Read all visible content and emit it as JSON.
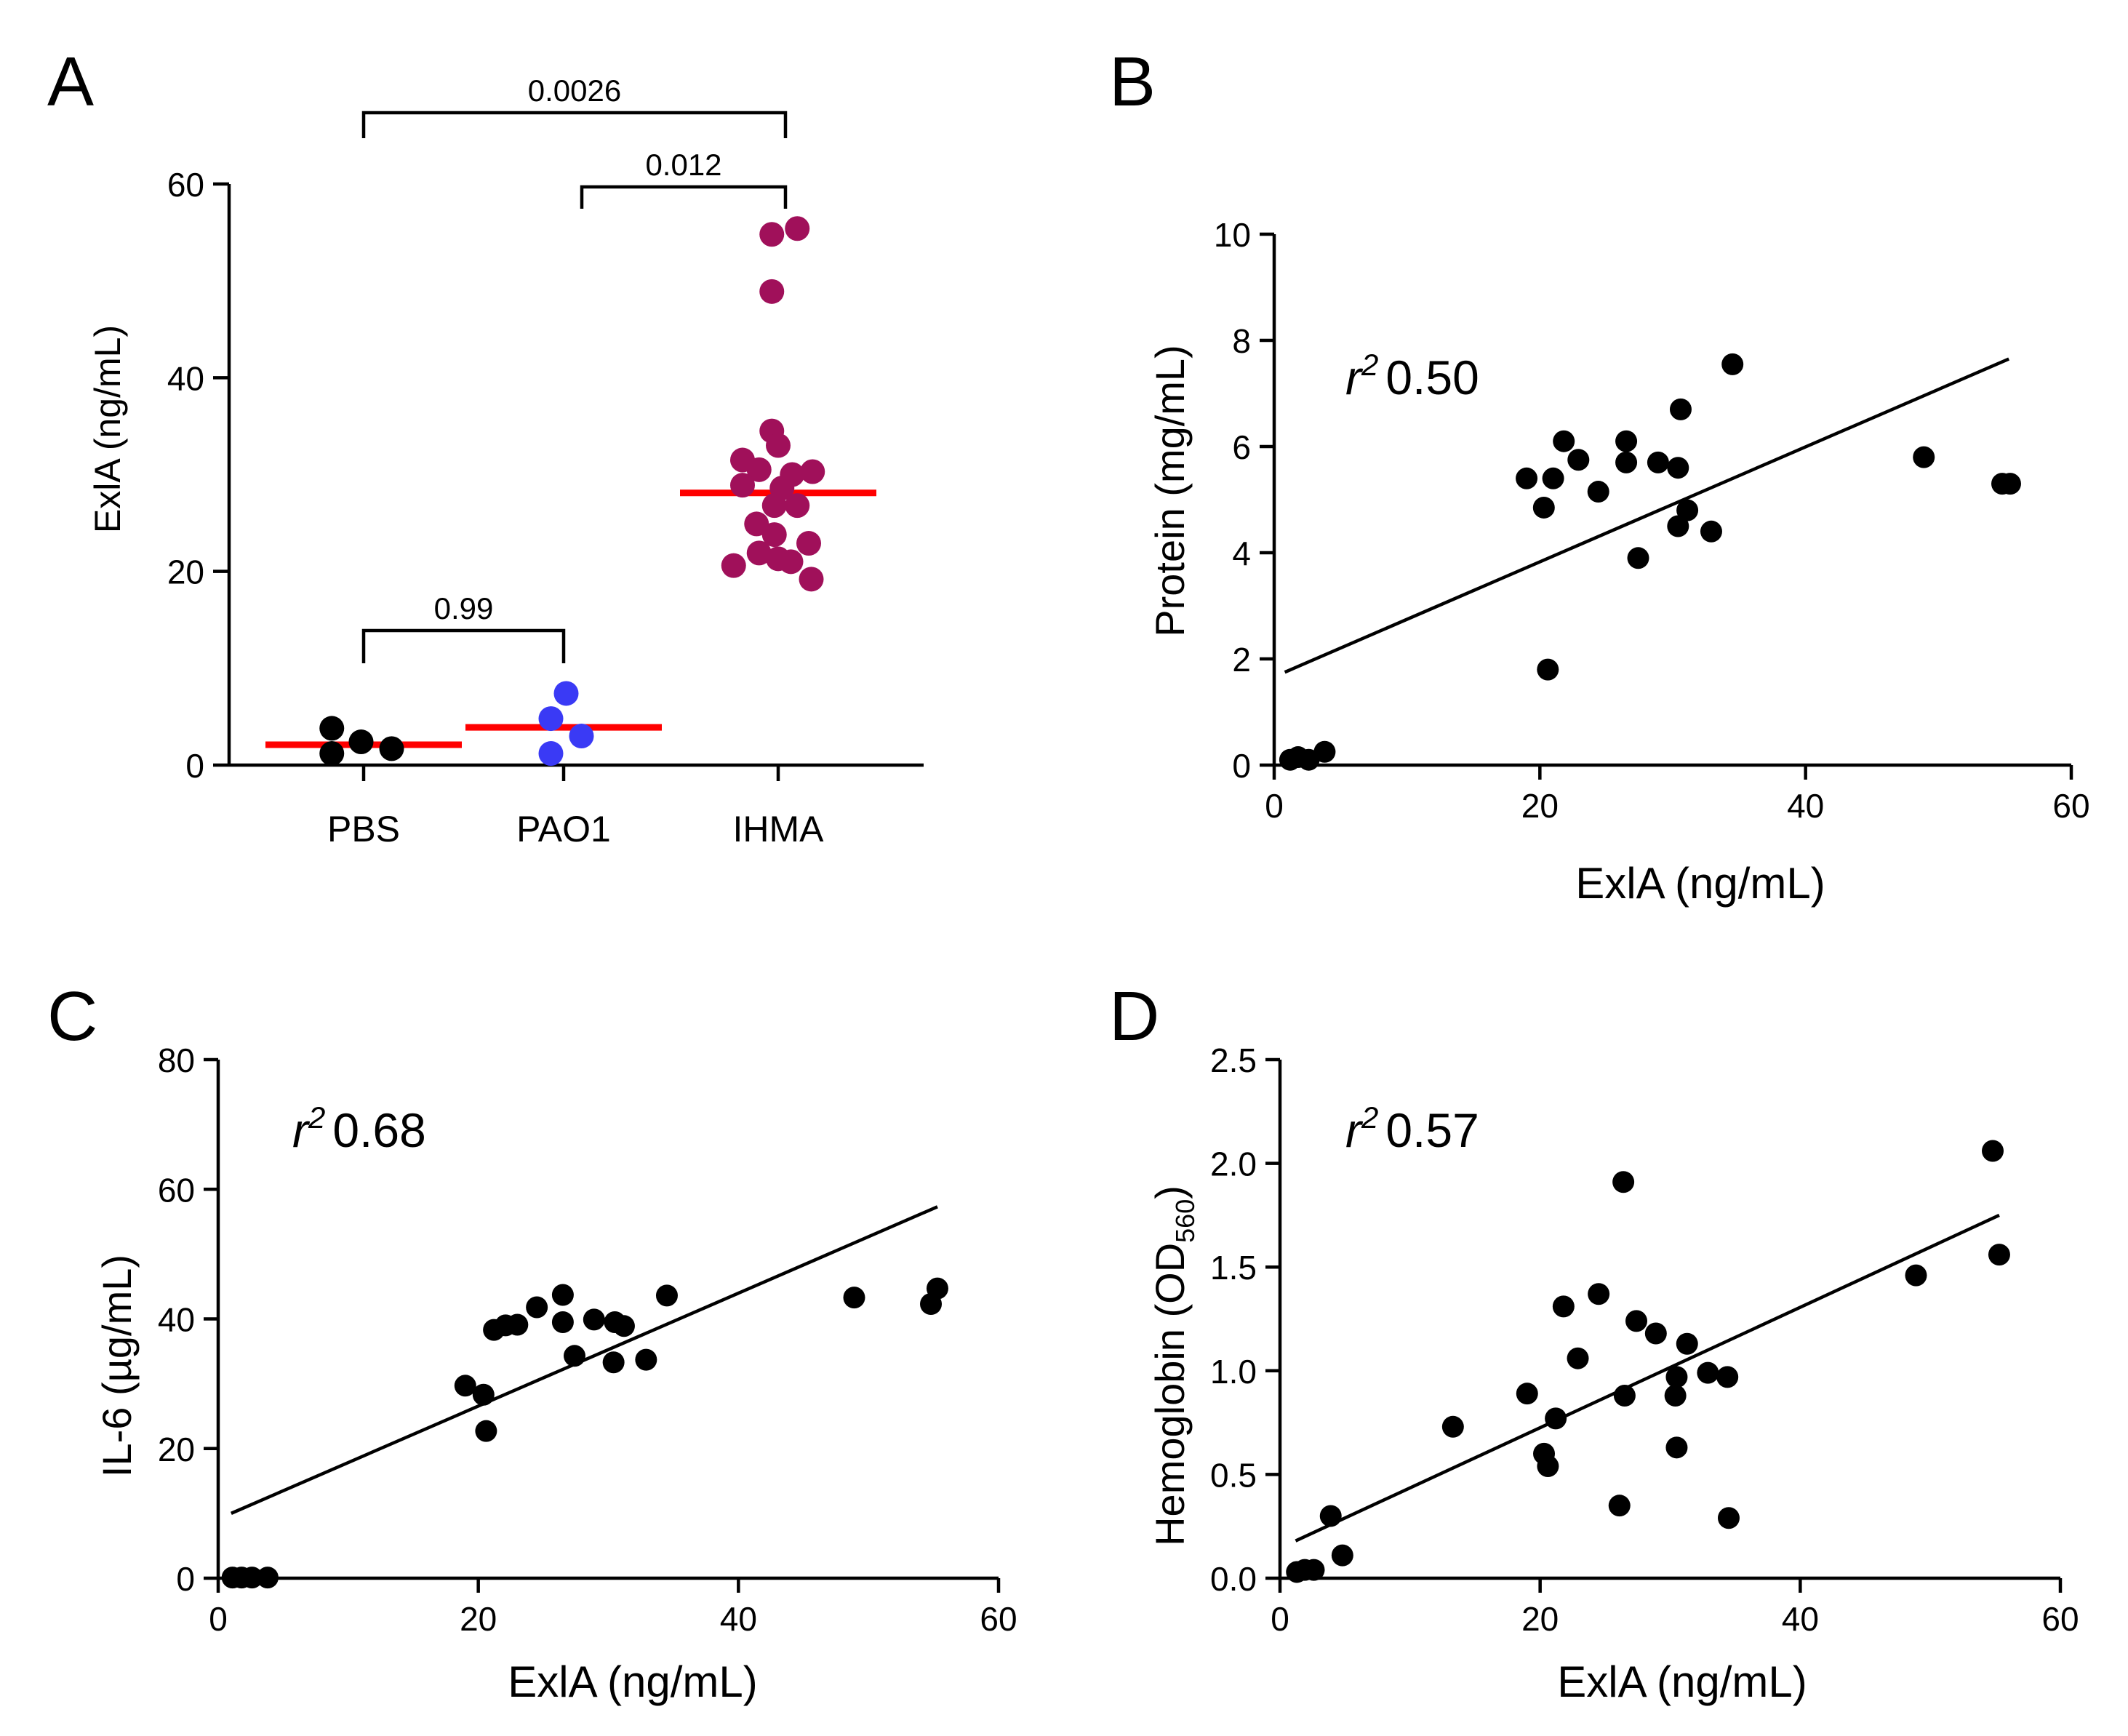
{
  "figure": {
    "panels": [
      "A",
      "B",
      "C",
      "D"
    ]
  },
  "chart_data": [
    {
      "panel": "A",
      "type": "scatter",
      "subtype": "dot-plot",
      "title": "",
      "xlabel": "",
      "ylabel": "ExlA (ng/mL)",
      "categories": [
        "PBS",
        "PAO1",
        "IHMA"
      ],
      "ylim": [
        0,
        60
      ],
      "yticks": [
        0,
        20,
        40,
        60
      ],
      "groups": [
        {
          "name": "PBS",
          "color": "#000000",
          "median": 2.1,
          "points": [
            [
              -0.25,
              3.8
            ],
            [
              -0.25,
              1.2
            ],
            [
              -0.02,
              2.4
            ],
            [
              0.22,
              1.7
            ]
          ]
        },
        {
          "name": "PAO1",
          "color": "#3a3af5",
          "median": 3.9,
          "points": [
            [
              -0.1,
              4.8
            ],
            [
              0.02,
              7.4
            ],
            [
              0.14,
              3.0
            ],
            [
              -0.1,
              1.2
            ]
          ]
        },
        {
          "name": "IHMA",
          "color": "#a0105a",
          "median": 28.1,
          "points": [
            [
              -0.05,
              54.8
            ],
            [
              0.15,
              55.4
            ],
            [
              -0.05,
              48.9
            ],
            [
              -0.05,
              34.5
            ],
            [
              0.0,
              33.0
            ],
            [
              -0.28,
              31.5
            ],
            [
              -0.15,
              30.5
            ],
            [
              0.11,
              30.0
            ],
            [
              0.27,
              30.3
            ],
            [
              -0.28,
              28.9
            ],
            [
              0.03,
              28.6
            ],
            [
              -0.03,
              26.8
            ],
            [
              0.15,
              26.8
            ],
            [
              -0.17,
              24.9
            ],
            [
              -0.35,
              20.6
            ],
            [
              -0.15,
              21.9
            ],
            [
              0.0,
              21.3
            ],
            [
              0.1,
              21.0
            ],
            [
              0.24,
              22.9
            ],
            [
              0.26,
              19.2
            ],
            [
              -0.03,
              23.8
            ]
          ]
        }
      ],
      "median_color": "#ff0000",
      "comparisons": [
        {
          "from": "PBS",
          "to": "IHMA",
          "label": "0.0026"
        },
        {
          "from": "PAO1",
          "to": "IHMA",
          "label": "0.012"
        },
        {
          "from": "PBS",
          "to": "PAO1",
          "label": "0.99"
        }
      ]
    },
    {
      "panel": "B",
      "type": "scatter",
      "title": "",
      "xlabel": "ExlA (ng/mL)",
      "ylabel": "Protein (mg/mL)",
      "xlim": [
        0,
        60
      ],
      "ylim": [
        0,
        10
      ],
      "xticks": [
        0,
        20,
        40,
        60
      ],
      "yticks": [
        0,
        2,
        4,
        6,
        8,
        10
      ],
      "annotation": {
        "italic": "r",
        "sup": "2",
        "value": "0.50"
      },
      "trendline": [
        [
          0.8,
          1.75
        ],
        [
          55.3,
          7.65
        ]
      ],
      "points": [
        [
          1.2,
          0.1
        ],
        [
          1.8,
          0.15
        ],
        [
          2.6,
          0.1
        ],
        [
          3.8,
          0.25
        ],
        [
          19.0,
          5.4
        ],
        [
          20.3,
          4.85
        ],
        [
          20.6,
          1.8
        ],
        [
          21.0,
          5.4
        ],
        [
          21.8,
          6.1
        ],
        [
          22.9,
          5.75
        ],
        [
          24.4,
          5.15
        ],
        [
          26.5,
          5.7
        ],
        [
          26.5,
          6.1
        ],
        [
          27.4,
          3.9
        ],
        [
          28.9,
          5.7
        ],
        [
          30.4,
          5.6
        ],
        [
          30.4,
          4.5
        ],
        [
          30.6,
          6.7
        ],
        [
          31.1,
          4.8
        ],
        [
          32.9,
          4.4
        ],
        [
          34.5,
          7.55
        ],
        [
          48.9,
          5.8
        ],
        [
          54.8,
          5.3
        ],
        [
          55.4,
          5.3
        ]
      ]
    },
    {
      "panel": "C",
      "type": "scatter",
      "title": "",
      "xlabel": "ExlA (ng/mL)",
      "ylabel": "IL-6 (µg/mL)",
      "xlim": [
        0,
        60
      ],
      "ylim": [
        0,
        80
      ],
      "xticks": [
        0,
        20,
        40,
        60
      ],
      "yticks": [
        0,
        20,
        40,
        60,
        80
      ],
      "annotation": {
        "italic": "r",
        "sup": "2",
        "value": "0.68"
      },
      "trendline": [
        [
          1.0,
          10.0
        ],
        [
          55.3,
          57.3
        ]
      ],
      "points": [
        [
          1.1,
          0.1
        ],
        [
          1.8,
          0.1
        ],
        [
          2.6,
          0.1
        ],
        [
          3.8,
          0.1
        ],
        [
          19.0,
          29.7
        ],
        [
          20.4,
          28.3
        ],
        [
          20.6,
          22.7
        ],
        [
          21.2,
          38.3
        ],
        [
          22.1,
          39.0
        ],
        [
          23.0,
          39.1
        ],
        [
          24.5,
          41.8
        ],
        [
          26.5,
          39.5
        ],
        [
          26.5,
          43.7
        ],
        [
          27.4,
          34.3
        ],
        [
          28.9,
          39.9
        ],
        [
          30.4,
          33.3
        ],
        [
          30.5,
          39.5
        ],
        [
          31.2,
          38.9
        ],
        [
          32.9,
          33.7
        ],
        [
          34.5,
          43.6
        ],
        [
          48.9,
          43.3
        ],
        [
          54.8,
          42.3
        ],
        [
          55.3,
          44.7
        ]
      ]
    },
    {
      "panel": "D",
      "type": "scatter",
      "title": "",
      "xlabel": "ExlA (ng/mL)",
      "ylabel": "Hemoglobin (OD",
      "ylabel_sub": "560",
      "ylabel_end": ")",
      "xlim": [
        0,
        60
      ],
      "ylim": [
        0,
        2.5
      ],
      "xticks": [
        0,
        20,
        40,
        60
      ],
      "yticks": [
        0.0,
        0.5,
        1.0,
        1.5,
        2.0,
        2.5
      ],
      "ytick_labels": [
        "0.0",
        "0.5",
        "1.0",
        "1.5",
        "2.0",
        "2.5"
      ],
      "annotation": {
        "italic": "r",
        "sup": "2",
        "value": "0.57"
      },
      "trendline": [
        [
          1.2,
          0.18
        ],
        [
          55.3,
          1.75
        ]
      ],
      "points": [
        [
          1.3,
          0.03
        ],
        [
          1.9,
          0.04
        ],
        [
          2.6,
          0.04
        ],
        [
          3.9,
          0.3
        ],
        [
          4.8,
          0.11
        ],
        [
          13.3,
          0.73
        ],
        [
          19.0,
          0.89
        ],
        [
          20.3,
          0.6
        ],
        [
          20.6,
          0.54
        ],
        [
          21.2,
          0.77
        ],
        [
          21.8,
          1.31
        ],
        [
          22.9,
          1.06
        ],
        [
          24.5,
          1.37
        ],
        [
          26.1,
          0.35
        ],
        [
          26.4,
          1.91
        ],
        [
          26.5,
          0.88
        ],
        [
          27.4,
          1.24
        ],
        [
          28.9,
          1.18
        ],
        [
          30.4,
          0.88
        ],
        [
          30.5,
          0.97
        ],
        [
          30.5,
          0.63
        ],
        [
          31.3,
          1.13
        ],
        [
          32.9,
          0.99
        ],
        [
          34.4,
          0.97
        ],
        [
          34.5,
          0.29
        ],
        [
          48.9,
          1.46
        ],
        [
          54.8,
          2.06
        ],
        [
          55.3,
          1.56
        ]
      ]
    }
  ]
}
